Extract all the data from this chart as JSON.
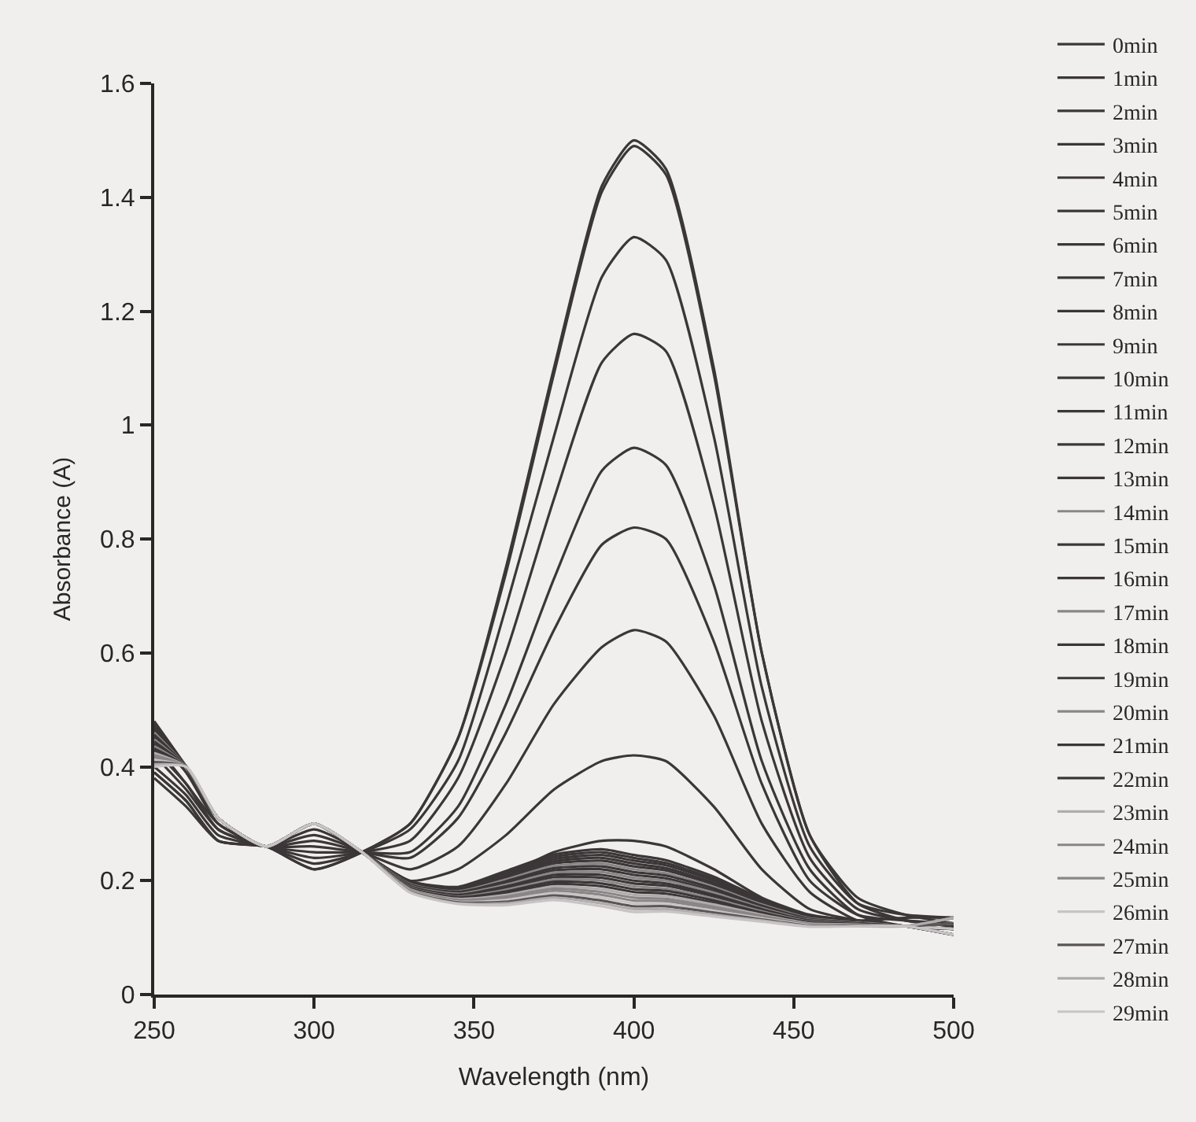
{
  "chart_data": {
    "type": "line",
    "xlabel": "Wavelength (nm)",
    "ylabel": "Absorbance (A)",
    "x": [
      250,
      260,
      270,
      285,
      300,
      315,
      330,
      345,
      360,
      375,
      390,
      400,
      410,
      425,
      440,
      455,
      470,
      485,
      500
    ],
    "xlim": [
      250,
      500
    ],
    "xticks": [
      250,
      300,
      350,
      400,
      450,
      500
    ],
    "ylim": [
      0,
      1.6
    ],
    "yticks": [
      0,
      0.2,
      0.4,
      0.6,
      0.8,
      1,
      1.2,
      1.4,
      1.6
    ],
    "legend": "right",
    "line_style": "solid",
    "series": [
      {
        "name": "0min",
        "color": "#3b3637",
        "values": [
          0.38,
          0.33,
          0.27,
          0.26,
          0.22,
          0.25,
          0.3,
          0.45,
          0.75,
          1.1,
          1.42,
          1.5,
          1.45,
          1.1,
          0.6,
          0.28,
          0.16,
          0.13,
          0.12
        ]
      },
      {
        "name": "1min",
        "color": "#3b3637",
        "values": [
          0.39,
          0.34,
          0.27,
          0.26,
          0.22,
          0.25,
          0.3,
          0.45,
          0.74,
          1.09,
          1.41,
          1.49,
          1.44,
          1.09,
          0.6,
          0.28,
          0.17,
          0.14,
          0.125
        ]
      },
      {
        "name": "2min",
        "color": "#3b3637",
        "values": [
          0.39,
          0.34,
          0.27,
          0.26,
          0.23,
          0.25,
          0.29,
          0.41,
          0.68,
          0.98,
          1.26,
          1.33,
          1.29,
          0.98,
          0.54,
          0.26,
          0.16,
          0.14,
          0.135
        ]
      },
      {
        "name": "3min",
        "color": "#3b3637",
        "values": [
          0.4,
          0.35,
          0.28,
          0.26,
          0.24,
          0.25,
          0.27,
          0.38,
          0.6,
          0.87,
          1.11,
          1.16,
          1.13,
          0.86,
          0.48,
          0.24,
          0.15,
          0.13,
          0.12
        ]
      },
      {
        "name": "4min",
        "color": "#3b3637",
        "values": [
          0.42,
          0.36,
          0.29,
          0.26,
          0.25,
          0.25,
          0.25,
          0.33,
          0.51,
          0.73,
          0.92,
          0.96,
          0.93,
          0.72,
          0.41,
          0.22,
          0.14,
          0.12,
          0.115
        ]
      },
      {
        "name": "5min",
        "color": "#3b3637",
        "values": [
          0.43,
          0.37,
          0.29,
          0.26,
          0.26,
          0.25,
          0.24,
          0.31,
          0.46,
          0.64,
          0.79,
          0.82,
          0.8,
          0.62,
          0.37,
          0.2,
          0.14,
          0.13,
          0.125
        ]
      },
      {
        "name": "6min",
        "color": "#3b3637",
        "values": [
          0.44,
          0.37,
          0.3,
          0.26,
          0.27,
          0.25,
          0.22,
          0.26,
          0.37,
          0.51,
          0.61,
          0.64,
          0.62,
          0.49,
          0.3,
          0.18,
          0.13,
          0.12,
          0.105
        ]
      },
      {
        "name": "7min",
        "color": "#3b3637",
        "values": [
          0.45,
          0.39,
          0.3,
          0.26,
          0.28,
          0.25,
          0.2,
          0.22,
          0.28,
          0.36,
          0.41,
          0.42,
          0.41,
          0.33,
          0.22,
          0.15,
          0.13,
          0.12,
          0.115
        ]
      },
      {
        "name": "8min",
        "color": "#3b3637",
        "values": [
          0.46,
          0.39,
          0.31,
          0.26,
          0.29,
          0.25,
          0.19,
          0.18,
          0.21,
          0.25,
          0.27,
          0.27,
          0.26,
          0.22,
          0.17,
          0.14,
          0.13,
          0.135,
          0.135
        ]
      },
      {
        "name": "9min",
        "color": "#3b3637",
        "values": [
          0.48,
          0.4,
          0.31,
          0.26,
          0.3,
          0.25,
          0.199,
          0.189,
          0.217,
          0.246,
          0.255,
          0.245,
          0.236,
          0.207,
          0.168,
          0.139,
          0.13,
          0.12,
          0.105
        ]
      },
      {
        "name": "10min",
        "color": "#3b3637",
        "values": [
          0.476,
          0.4,
          0.31,
          0.26,
          0.3,
          0.25,
          0.198,
          0.187,
          0.214,
          0.242,
          0.25,
          0.24,
          0.231,
          0.203,
          0.166,
          0.138,
          0.129,
          0.12,
          0.115
        ]
      },
      {
        "name": "11min",
        "color": "#3b3637",
        "values": [
          0.472,
          0.4,
          0.31,
          0.26,
          0.3,
          0.25,
          0.197,
          0.186,
          0.211,
          0.238,
          0.245,
          0.235,
          0.227,
          0.2,
          0.164,
          0.137,
          0.129,
          0.12,
          0.125
        ]
      },
      {
        "name": "12min",
        "color": "#3b3637",
        "values": [
          0.468,
          0.4,
          0.31,
          0.26,
          0.3,
          0.25,
          0.196,
          0.184,
          0.208,
          0.234,
          0.24,
          0.23,
          0.222,
          0.196,
          0.162,
          0.136,
          0.128,
          0.12,
          0.135
        ]
      },
      {
        "name": "13min",
        "color": "#3b3637",
        "values": [
          0.464,
          0.4,
          0.31,
          0.26,
          0.3,
          0.25,
          0.195,
          0.183,
          0.205,
          0.23,
          0.235,
          0.225,
          0.218,
          0.193,
          0.16,
          0.135,
          0.128,
          0.12,
          0.105
        ]
      },
      {
        "name": "14min",
        "color": "#8a8687",
        "values": [
          0.46,
          0.4,
          0.31,
          0.26,
          0.3,
          0.25,
          0.194,
          0.181,
          0.202,
          0.226,
          0.23,
          0.22,
          0.213,
          0.189,
          0.158,
          0.134,
          0.127,
          0.12,
          0.115
        ]
      },
      {
        "name": "15min",
        "color": "#3b3637",
        "values": [
          0.456,
          0.4,
          0.31,
          0.26,
          0.3,
          0.25,
          0.193,
          0.18,
          0.199,
          0.222,
          0.225,
          0.215,
          0.209,
          0.186,
          0.156,
          0.133,
          0.127,
          0.12,
          0.125
        ]
      },
      {
        "name": "16min",
        "color": "#3b3637",
        "values": [
          0.452,
          0.4,
          0.31,
          0.26,
          0.3,
          0.25,
          0.192,
          0.178,
          0.196,
          0.218,
          0.22,
          0.21,
          0.204,
          0.182,
          0.154,
          0.132,
          0.126,
          0.12,
          0.135
        ]
      },
      {
        "name": "17min",
        "color": "#8a8687",
        "values": [
          0.448,
          0.4,
          0.31,
          0.26,
          0.3,
          0.25,
          0.191,
          0.177,
          0.193,
          0.214,
          0.215,
          0.205,
          0.2,
          0.179,
          0.152,
          0.131,
          0.126,
          0.12,
          0.105
        ]
      },
      {
        "name": "18min",
        "color": "#3b3637",
        "values": [
          0.444,
          0.4,
          0.31,
          0.26,
          0.3,
          0.25,
          0.19,
          0.175,
          0.19,
          0.21,
          0.21,
          0.2,
          0.195,
          0.175,
          0.15,
          0.13,
          0.125,
          0.12,
          0.115
        ]
      },
      {
        "name": "19min",
        "color": "#3b3637",
        "values": [
          0.44,
          0.4,
          0.31,
          0.26,
          0.3,
          0.25,
          0.189,
          0.174,
          0.187,
          0.206,
          0.205,
          0.195,
          0.191,
          0.172,
          0.148,
          0.129,
          0.125,
          0.12,
          0.125
        ]
      },
      {
        "name": "20min",
        "color": "#8a8687",
        "values": [
          0.436,
          0.4,
          0.31,
          0.26,
          0.3,
          0.25,
          0.188,
          0.172,
          0.184,
          0.202,
          0.2,
          0.19,
          0.186,
          0.168,
          0.146,
          0.128,
          0.124,
          0.12,
          0.135
        ]
      },
      {
        "name": "21min",
        "color": "#3b3637",
        "values": [
          0.432,
          0.4,
          0.31,
          0.26,
          0.3,
          0.25,
          0.187,
          0.171,
          0.181,
          0.198,
          0.195,
          0.185,
          0.182,
          0.165,
          0.144,
          0.127,
          0.124,
          0.12,
          0.105
        ]
      },
      {
        "name": "22min",
        "color": "#3b3637",
        "values": [
          0.428,
          0.4,
          0.31,
          0.26,
          0.3,
          0.25,
          0.186,
          0.169,
          0.178,
          0.194,
          0.19,
          0.18,
          0.177,
          0.161,
          0.142,
          0.126,
          0.123,
          0.12,
          0.115
        ]
      },
      {
        "name": "23min",
        "color": "#b0acad",
        "values": [
          0.424,
          0.4,
          0.31,
          0.26,
          0.3,
          0.25,
          0.185,
          0.168,
          0.175,
          0.19,
          0.185,
          0.175,
          0.173,
          0.158,
          0.14,
          0.125,
          0.123,
          0.12,
          0.125
        ]
      },
      {
        "name": "24min",
        "color": "#8a8687",
        "values": [
          0.42,
          0.4,
          0.31,
          0.26,
          0.3,
          0.25,
          0.184,
          0.166,
          0.172,
          0.186,
          0.18,
          0.17,
          0.168,
          0.154,
          0.138,
          0.124,
          0.122,
          0.12,
          0.135
        ]
      },
      {
        "name": "25min",
        "color": "#8a8687",
        "values": [
          0.416,
          0.4,
          0.31,
          0.26,
          0.3,
          0.25,
          0.183,
          0.165,
          0.169,
          0.182,
          0.175,
          0.165,
          0.164,
          0.151,
          0.136,
          0.123,
          0.122,
          0.12,
          0.105
        ]
      },
      {
        "name": "26min",
        "color": "#c8c4c5",
        "values": [
          0.412,
          0.4,
          0.31,
          0.26,
          0.3,
          0.25,
          0.182,
          0.163,
          0.166,
          0.178,
          0.17,
          0.16,
          0.159,
          0.147,
          0.134,
          0.122,
          0.121,
          0.12,
          0.115
        ]
      },
      {
        "name": "27min",
        "color": "#5a5556",
        "values": [
          0.408,
          0.4,
          0.31,
          0.26,
          0.3,
          0.25,
          0.181,
          0.162,
          0.163,
          0.174,
          0.165,
          0.155,
          0.155,
          0.144,
          0.132,
          0.121,
          0.121,
          0.12,
          0.125
        ]
      },
      {
        "name": "28min",
        "color": "#b0acad",
        "values": [
          0.404,
          0.4,
          0.31,
          0.26,
          0.3,
          0.25,
          0.18,
          0.16,
          0.16,
          0.17,
          0.16,
          0.15,
          0.15,
          0.14,
          0.13,
          0.12,
          0.12,
          0.12,
          0.135
        ]
      },
      {
        "name": "29min",
        "color": "#c8c4c5",
        "values": [
          0.4,
          0.4,
          0.31,
          0.26,
          0.3,
          0.25,
          0.179,
          0.159,
          0.157,
          0.166,
          0.155,
          0.145,
          0.146,
          0.137,
          0.128,
          0.119,
          0.12,
          0.12,
          0.105
        ]
      }
    ]
  }
}
